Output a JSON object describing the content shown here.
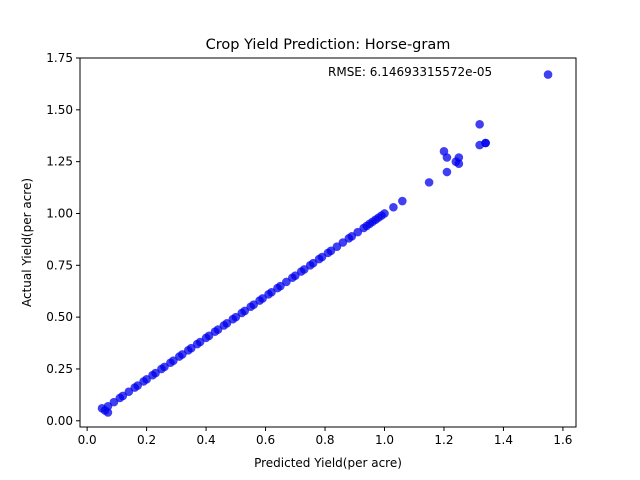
{
  "chart_data": {
    "type": "scatter",
    "title": "Crop Yield Prediction: Horse-gram",
    "xlabel": "Predicted Yield(per acre)",
    "ylabel": "Actual Yield(per acre)",
    "annotation": "RMSE: 6.14693315572e-05",
    "xlim": [
      0.0,
      1.6
    ],
    "ylim": [
      0.0,
      1.75
    ],
    "xticks": [
      "0.0",
      "0.2",
      "0.4",
      "0.6",
      "0.8",
      "1.0",
      "1.2",
      "1.4",
      "1.6"
    ],
    "yticks": [
      "0.00",
      "0.25",
      "0.50",
      "0.75",
      "1.00",
      "1.25",
      "1.50",
      "1.75"
    ],
    "grid": false,
    "marker_color": "#0000ee",
    "series": [
      {
        "x": [
          0.05,
          0.06,
          0.07,
          0.07,
          0.09,
          0.11,
          0.12,
          0.14,
          0.16,
          0.17,
          0.19,
          0.2,
          0.22,
          0.23,
          0.25,
          0.26,
          0.28,
          0.29,
          0.31,
          0.32,
          0.34,
          0.35,
          0.37,
          0.38,
          0.4,
          0.41,
          0.43,
          0.44,
          0.46,
          0.47,
          0.49,
          0.5,
          0.52,
          0.53,
          0.55,
          0.56,
          0.58,
          0.59,
          0.61,
          0.62,
          0.64,
          0.65,
          0.67,
          0.69,
          0.7,
          0.72,
          0.73,
          0.75,
          0.76,
          0.78,
          0.79,
          0.81,
          0.82,
          0.84,
          0.86,
          0.88,
          0.89,
          0.91,
          0.93,
          0.94,
          0.95,
          0.96,
          0.97,
          0.98,
          0.99,
          1.0,
          1.03,
          1.06,
          1.15,
          1.2,
          1.21,
          1.21,
          1.24,
          1.25,
          1.25,
          1.32,
          1.32,
          1.34,
          1.34,
          1.55
        ],
        "y": [
          0.06,
          0.05,
          0.04,
          0.07,
          0.09,
          0.11,
          0.12,
          0.14,
          0.16,
          0.17,
          0.19,
          0.2,
          0.22,
          0.23,
          0.25,
          0.26,
          0.28,
          0.29,
          0.31,
          0.32,
          0.34,
          0.35,
          0.37,
          0.38,
          0.4,
          0.41,
          0.43,
          0.44,
          0.46,
          0.47,
          0.49,
          0.5,
          0.52,
          0.53,
          0.55,
          0.56,
          0.58,
          0.59,
          0.61,
          0.62,
          0.64,
          0.65,
          0.67,
          0.69,
          0.7,
          0.72,
          0.73,
          0.75,
          0.76,
          0.78,
          0.79,
          0.81,
          0.82,
          0.84,
          0.86,
          0.88,
          0.89,
          0.91,
          0.93,
          0.94,
          0.95,
          0.96,
          0.97,
          0.98,
          0.99,
          1.0,
          1.03,
          1.06,
          1.15,
          1.3,
          1.27,
          1.2,
          1.25,
          1.27,
          1.24,
          1.43,
          1.33,
          1.34,
          1.34,
          1.67
        ]
      }
    ]
  }
}
